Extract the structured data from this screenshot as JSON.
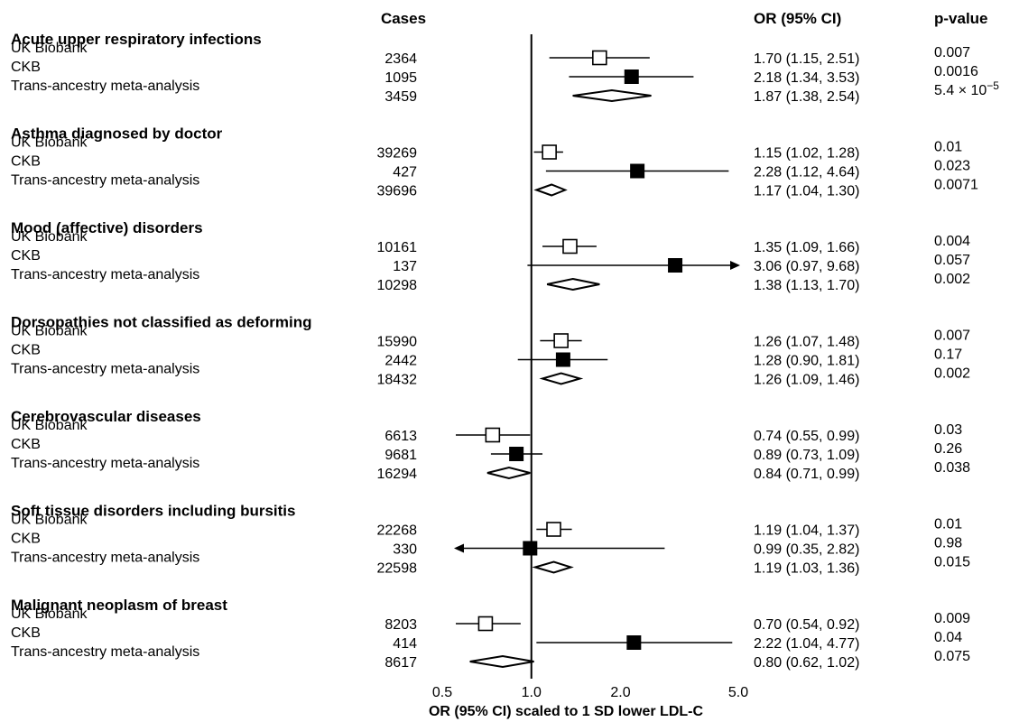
{
  "chart_data": {
    "type": "forest",
    "headers": {
      "cases": "Cases",
      "or_ci": "OR (95% CI)",
      "pvalue": "p-value"
    },
    "xlabel": "OR (95% CI) scaled to 1 SD lower LDL-C",
    "x_scale": "log",
    "xlim": [
      0.5,
      5.0
    ],
    "x_ticks": [
      {
        "value": 0.5,
        "label": "0.5"
      },
      {
        "value": 1.0,
        "label": "1.0"
      },
      {
        "value": 2.0,
        "label": "2.0"
      },
      {
        "value": 5.0,
        "label": "5.0"
      }
    ],
    "reference_line": 1.0,
    "marker_styles": {
      "UK Biobank": "open-square",
      "CKB": "filled-square",
      "Trans-ancestry meta-analysis": "open-diamond"
    },
    "groups": [
      {
        "title": "Acute upper respiratory infections",
        "rows": [
          {
            "label": "UK Biobank",
            "cases": "2364",
            "or": 1.7,
            "lo": 1.15,
            "hi": 2.51,
            "or_text": "1.70 (1.15, 2.51)",
            "p": "0.007"
          },
          {
            "label": "CKB",
            "cases": "1095",
            "or": 2.18,
            "lo": 1.34,
            "hi": 3.53,
            "or_text": "2.18 (1.34, 3.53)",
            "p": "0.0016"
          },
          {
            "label": "Trans-ancestry meta-analysis",
            "cases": "3459",
            "or": 1.87,
            "lo": 1.38,
            "hi": 2.54,
            "or_text": "1.87 (1.38, 2.54)",
            "p": "5.4 × 10",
            "p_exp": "−5"
          }
        ]
      },
      {
        "title": "Asthma diagnosed by doctor",
        "rows": [
          {
            "label": "UK Biobank",
            "cases": "39269",
            "or": 1.15,
            "lo": 1.02,
            "hi": 1.28,
            "or_text": "1.15 (1.02, 1.28)",
            "p": "0.01"
          },
          {
            "label": "CKB",
            "cases": "427",
            "or": 2.28,
            "lo": 1.12,
            "hi": 4.64,
            "or_text": "2.28 (1.12, 4.64)",
            "p": "0.023"
          },
          {
            "label": "Trans-ancestry meta-analysis",
            "cases": "39696",
            "or": 1.17,
            "lo": 1.04,
            "hi": 1.3,
            "or_text": "1.17 (1.04, 1.30)",
            "p": "0.0071"
          }
        ]
      },
      {
        "title": "Mood (affective) disorders",
        "rows": [
          {
            "label": "UK Biobank",
            "cases": "10161",
            "or": 1.35,
            "lo": 1.09,
            "hi": 1.66,
            "or_text": "1.35 (1.09, 1.66)",
            "p": "0.004"
          },
          {
            "label": "CKB",
            "cases": "137",
            "or": 3.06,
            "lo": 0.97,
            "hi": 9.68,
            "or_text": "3.06 (0.97, 9.68)",
            "p": "0.057"
          },
          {
            "label": "Trans-ancestry meta-analysis",
            "cases": "10298",
            "or": 1.38,
            "lo": 1.13,
            "hi": 1.7,
            "or_text": "1.38 (1.13, 1.70)",
            "p": "0.002"
          }
        ]
      },
      {
        "title": "Dorsopathies not classified as deforming",
        "rows": [
          {
            "label": "UK Biobank",
            "cases": "15990",
            "or": 1.26,
            "lo": 1.07,
            "hi": 1.48,
            "or_text": "1.26 (1.07, 1.48)",
            "p": "0.007"
          },
          {
            "label": "CKB",
            "cases": "2442",
            "or": 1.28,
            "lo": 0.9,
            "hi": 1.81,
            "or_text": "1.28 (0.90, 1.81)",
            "p": "0.17"
          },
          {
            "label": "Trans-ancestry meta-analysis",
            "cases": "18432",
            "or": 1.26,
            "lo": 1.09,
            "hi": 1.46,
            "or_text": "1.26 (1.09, 1.46)",
            "p": "0.002"
          }
        ]
      },
      {
        "title": "Cerebrovascular diseases",
        "rows": [
          {
            "label": "UK Biobank",
            "cases": "6613",
            "or": 0.74,
            "lo": 0.55,
            "hi": 0.99,
            "or_text": "0.74 (0.55, 0.99)",
            "p": "0.03"
          },
          {
            "label": "CKB",
            "cases": "9681",
            "or": 0.89,
            "lo": 0.73,
            "hi": 1.09,
            "or_text": "0.89 (0.73, 1.09)",
            "p": "0.26"
          },
          {
            "label": "Trans-ancestry meta-analysis",
            "cases": "16294",
            "or": 0.84,
            "lo": 0.71,
            "hi": 0.99,
            "or_text": "0.84 (0.71, 0.99)",
            "p": "0.038"
          }
        ]
      },
      {
        "title": "Soft tissue disorders including bursitis",
        "rows": [
          {
            "label": "UK Biobank",
            "cases": "22268",
            "or": 1.19,
            "lo": 1.04,
            "hi": 1.37,
            "or_text": "1.19 (1.04, 1.37)",
            "p": "0.01"
          },
          {
            "label": "CKB",
            "cases": "330",
            "or": 0.99,
            "lo": 0.35,
            "hi": 2.82,
            "or_text": "0.99 (0.35, 2.82)",
            "p": "0.98"
          },
          {
            "label": "Trans-ancestry meta-analysis",
            "cases": "22598",
            "or": 1.19,
            "lo": 1.03,
            "hi": 1.36,
            "or_text": "1.19 (1.03, 1.36)",
            "p": "0.015"
          }
        ]
      },
      {
        "title": "Malignant neoplasm of breast",
        "rows": [
          {
            "label": "UK Biobank",
            "cases": "8203",
            "or": 0.7,
            "lo": 0.54,
            "hi": 0.92,
            "or_text": "0.70 (0.54, 0.92)",
            "p": "0.009"
          },
          {
            "label": "CKB",
            "cases": "414",
            "or": 2.22,
            "lo": 1.04,
            "hi": 4.77,
            "or_text": "2.22 (1.04, 4.77)",
            "p": "0.04"
          },
          {
            "label": "Trans-ancestry meta-analysis",
            "cases": "8617",
            "or": 0.8,
            "lo": 0.62,
            "hi": 1.02,
            "or_text": "0.80 (0.62, 1.02)",
            "p": "0.075"
          }
        ]
      }
    ]
  }
}
